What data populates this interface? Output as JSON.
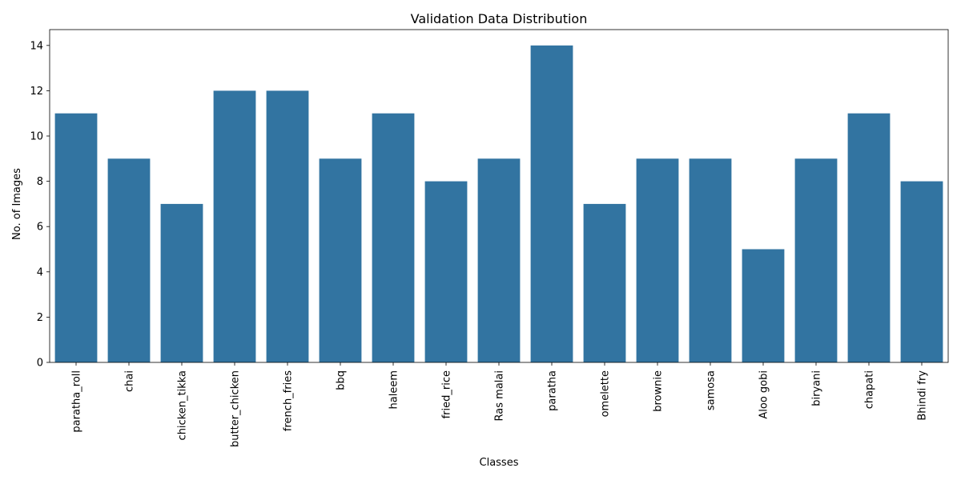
{
  "chart_data": {
    "type": "bar",
    "title": "Validation Data Distribution",
    "xlabel": "Classes",
    "ylabel": "No. of Images",
    "categories": [
      "paratha_roll",
      "chai",
      "chicken_tikka",
      "butter_chicken",
      "french_fries",
      "bbq",
      "haleem",
      "fried_rice",
      "Ras malai",
      "paratha",
      "omelette",
      "brownie",
      "samosa",
      "Aloo gobi",
      "biryani",
      "chapati",
      "Bhindi fry"
    ],
    "values": [
      11,
      9,
      7,
      12,
      12,
      9,
      11,
      8,
      9,
      14,
      7,
      9,
      9,
      5,
      9,
      11,
      8
    ],
    "ylim": [
      0,
      14.7
    ],
    "yticks": [
      0,
      2,
      4,
      6,
      8,
      10,
      12,
      14
    ],
    "bar_color": "#3274a1",
    "grid": false,
    "legend": "none"
  }
}
